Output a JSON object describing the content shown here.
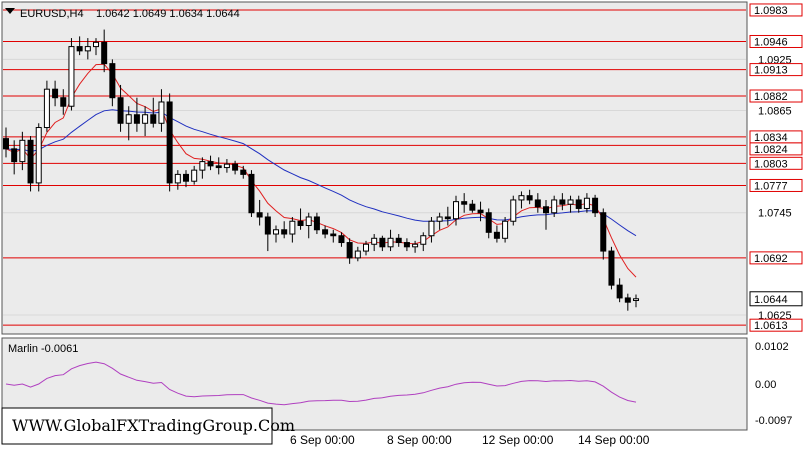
{
  "header": {
    "symbol_timeframe": "EURUSD,H4",
    "ohlc": "1.0642 1.0649 1.0634 1.0644"
  },
  "indicator": {
    "label": "Marlin -0.0061",
    "scale": [
      "0.0102",
      "0.00",
      "-0.0097"
    ],
    "color": "#b040c0"
  },
  "watermark": "WWW.GlobalFXTradingGroup.Com",
  "price_axis": {
    "ticks": [
      "1.0925",
      "1.0865",
      "1.0745",
      "1.0625"
    ],
    "current_price": "1.0644",
    "levels": [
      "1.0983",
      "1.0946",
      "1.0913",
      "1.0882",
      "1.0834",
      "1.0824",
      "1.0803",
      "1.0777",
      "1.0692",
      "1.0613"
    ],
    "level_color": "#e00000"
  },
  "time_axis": {
    "labels": [
      "6 Sep 00:00",
      "8 Sep 00:00",
      "12 Sep 00:00",
      "14 Sep 00:00"
    ]
  },
  "colors": {
    "background": "#ebebeb",
    "ma_fast": "#e02020",
    "ma_slow": "#2030c0"
  },
  "chart_data": {
    "type": "candlestick",
    "title": "EURUSD,H4",
    "ylim": [
      1.0605,
      1.099
    ],
    "candles": [
      [
        1.0832,
        1.0845,
        1.081,
        1.082
      ],
      [
        1.082,
        1.083,
        1.079,
        1.0805
      ],
      [
        1.0805,
        1.084,
        1.0795,
        1.083
      ],
      [
        1.083,
        1.0835,
        1.077,
        1.078
      ],
      [
        1.078,
        1.085,
        1.077,
        1.0845
      ],
      [
        1.0845,
        1.09,
        1.084,
        1.089
      ],
      [
        1.089,
        1.09,
        1.087,
        1.088
      ],
      [
        1.088,
        1.089,
        1.086,
        1.087
      ],
      [
        1.087,
        1.095,
        1.0865,
        1.094
      ],
      [
        1.094,
        1.0952,
        1.093,
        1.0935
      ],
      [
        1.0935,
        1.095,
        1.0925,
        1.094
      ],
      [
        1.094,
        1.095,
        1.093,
        1.0945
      ],
      [
        1.0945,
        1.096,
        1.091,
        1.092
      ],
      [
        1.092,
        1.0925,
        1.087,
        1.088
      ],
      [
        1.088,
        1.0895,
        1.084,
        1.085
      ],
      [
        1.085,
        1.087,
        1.083,
        1.086
      ],
      [
        1.086,
        1.088,
        1.084,
        1.085
      ],
      [
        1.085,
        1.087,
        1.0835,
        1.086
      ],
      [
        1.086,
        1.088,
        1.0845,
        1.085
      ],
      [
        1.085,
        1.089,
        1.084,
        1.0875
      ],
      [
        1.0875,
        1.0885,
        1.077,
        1.078
      ],
      [
        1.078,
        1.0795,
        1.0772,
        1.079
      ],
      [
        1.079,
        1.0795,
        1.0775,
        1.0782
      ],
      [
        1.0782,
        1.08,
        1.0778,
        1.0795
      ],
      [
        1.0795,
        1.081,
        1.0785,
        1.0805
      ],
      [
        1.0805,
        1.0812,
        1.0795,
        1.08
      ],
      [
        1.08,
        1.081,
        1.079,
        1.0798
      ],
      [
        1.0798,
        1.0808,
        1.0792,
        1.0802
      ],
      [
        1.0802,
        1.0806,
        1.079,
        1.0795
      ],
      [
        1.0795,
        1.08,
        1.0785,
        1.079
      ],
      [
        1.079,
        1.0795,
        1.074,
        1.0745
      ],
      [
        1.0745,
        1.076,
        1.073,
        1.074
      ],
      [
        1.074,
        1.0745,
        1.07,
        1.072
      ],
      [
        1.072,
        1.073,
        1.071,
        1.0725
      ],
      [
        1.0725,
        1.0735,
        1.0715,
        1.072
      ],
      [
        1.072,
        1.074,
        1.071,
        1.0735
      ],
      [
        1.0735,
        1.075,
        1.0725,
        1.073
      ],
      [
        1.073,
        1.0745,
        1.0715,
        1.074
      ],
      [
        1.074,
        1.0745,
        1.072,
        1.0725
      ],
      [
        1.0725,
        1.073,
        1.0715,
        1.072
      ],
      [
        1.072,
        1.0725,
        1.071,
        1.0718
      ],
      [
        1.0718,
        1.0722,
        1.0705,
        1.071
      ],
      [
        1.071,
        1.0715,
        1.0685,
        1.0692
      ],
      [
        1.0692,
        1.0705,
        1.0688,
        1.07
      ],
      [
        1.07,
        1.0712,
        1.0695,
        1.0708
      ],
      [
        1.0708,
        1.072,
        1.07,
        1.0715
      ],
      [
        1.0715,
        1.0718,
        1.07,
        1.0705
      ],
      [
        1.0705,
        1.0725,
        1.07,
        1.0715
      ],
      [
        1.0715,
        1.072,
        1.0705,
        1.071
      ],
      [
        1.071,
        1.0715,
        1.07,
        1.0705
      ],
      [
        1.0705,
        1.0712,
        1.0698,
        1.0708
      ],
      [
        1.0708,
        1.0722,
        1.07,
        1.0718
      ],
      [
        1.0718,
        1.074,
        1.071,
        1.0735
      ],
      [
        1.0735,
        1.0745,
        1.0725,
        1.074
      ],
      [
        1.074,
        1.0752,
        1.073,
        1.0738
      ],
      [
        1.0738,
        1.0765,
        1.073,
        1.0758
      ],
      [
        1.0758,
        1.0768,
        1.0745,
        1.0755
      ],
      [
        1.0755,
        1.076,
        1.0745,
        1.0748
      ],
      [
        1.0748,
        1.0758,
        1.0735,
        1.0745
      ],
      [
        1.0745,
        1.075,
        1.0715,
        1.0722
      ],
      [
        1.0722,
        1.073,
        1.071,
        1.0715
      ],
      [
        1.0715,
        1.074,
        1.071,
        1.0735
      ],
      [
        1.0735,
        1.0765,
        1.073,
        1.076
      ],
      [
        1.076,
        1.077,
        1.075,
        1.0765
      ],
      [
        1.0765,
        1.0772,
        1.0755,
        1.076
      ],
      [
        1.076,
        1.0768,
        1.0745,
        1.0752
      ],
      [
        1.0752,
        1.076,
        1.0725,
        1.0745
      ],
      [
        1.0745,
        1.0765,
        1.074,
        1.076
      ],
      [
        1.076,
        1.0768,
        1.0748,
        1.0755
      ],
      [
        1.0755,
        1.0765,
        1.0745,
        1.076
      ],
      [
        1.076,
        1.0765,
        1.0745,
        1.075
      ],
      [
        1.075,
        1.0768,
        1.0745,
        1.0762
      ],
      [
        1.0762,
        1.0766,
        1.074,
        1.0745
      ],
      [
        1.0745,
        1.075,
        1.069,
        1.07
      ],
      [
        1.07,
        1.0705,
        1.0655,
        1.066
      ],
      [
        1.066,
        1.0668,
        1.064,
        1.0645
      ],
      [
        1.0645,
        1.065,
        1.063,
        1.064
      ],
      [
        1.0642,
        1.0649,
        1.0634,
        1.0644
      ]
    ]
  }
}
